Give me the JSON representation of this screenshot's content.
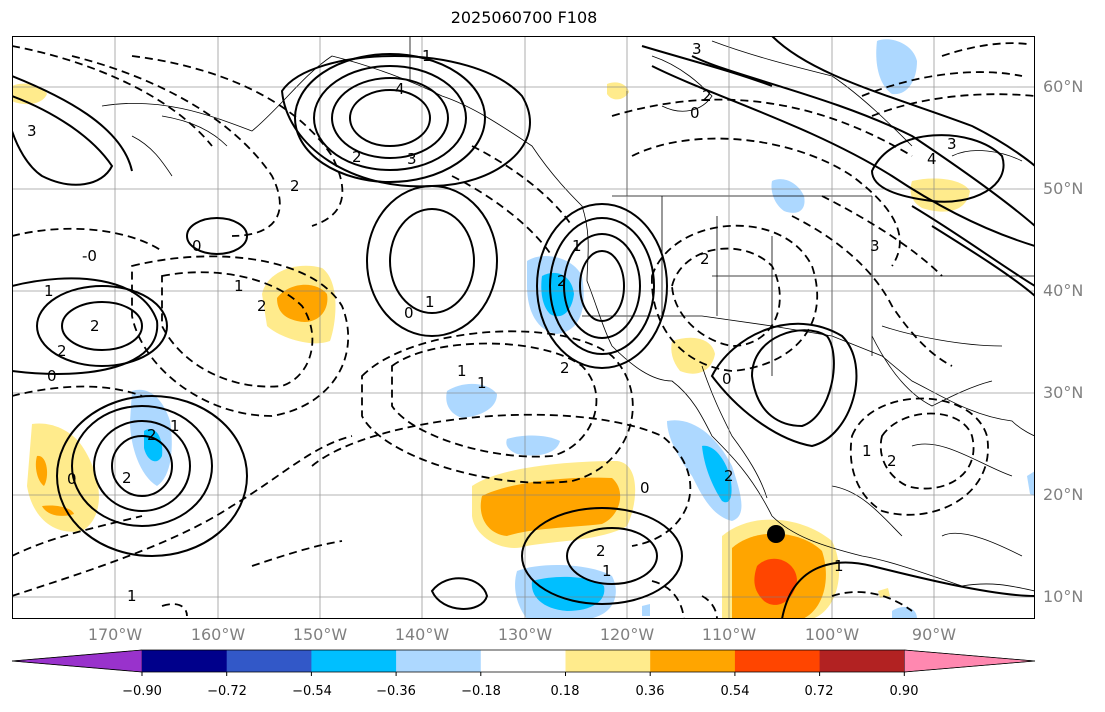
{
  "title": "2025060700 F108",
  "lat_labels": [
    "60°N",
    "50°N",
    "40°N",
    "30°N",
    "20°N",
    "10°N"
  ],
  "lon_labels": [
    "170°W",
    "160°W",
    "150°W",
    "140°W",
    "130°W",
    "120°W",
    "110°W",
    "100°W",
    "90°W"
  ],
  "colorbar": {
    "ticks": [
      "−0.90",
      "−0.72",
      "−0.54",
      "−0.36",
      "−0.18",
      "0.18",
      "0.36",
      "0.54",
      "0.72",
      "0.90"
    ],
    "colors": [
      "#9932cc",
      "#00008b",
      "#3258c8",
      "#00bfff",
      "#add8ff",
      "#ffffff",
      "#ffeb8c",
      "#ffa500",
      "#ff4500",
      "#b22222",
      "#ff88b0"
    ]
  },
  "contour_labels": [
    "1",
    "2",
    "3",
    "4",
    "0",
    "-0",
    "1",
    "2",
    "3",
    "0",
    "2",
    "3",
    "4",
    "3",
    "2",
    "0",
    "1",
    "2",
    "0",
    "2",
    "1",
    "1",
    "2",
    "1",
    "1",
    "2",
    "1",
    "2",
    "0",
    "0",
    "2",
    "1",
    "2",
    "0",
    "2",
    "1",
    "2",
    "1",
    "2",
    "1",
    "3"
  ]
}
